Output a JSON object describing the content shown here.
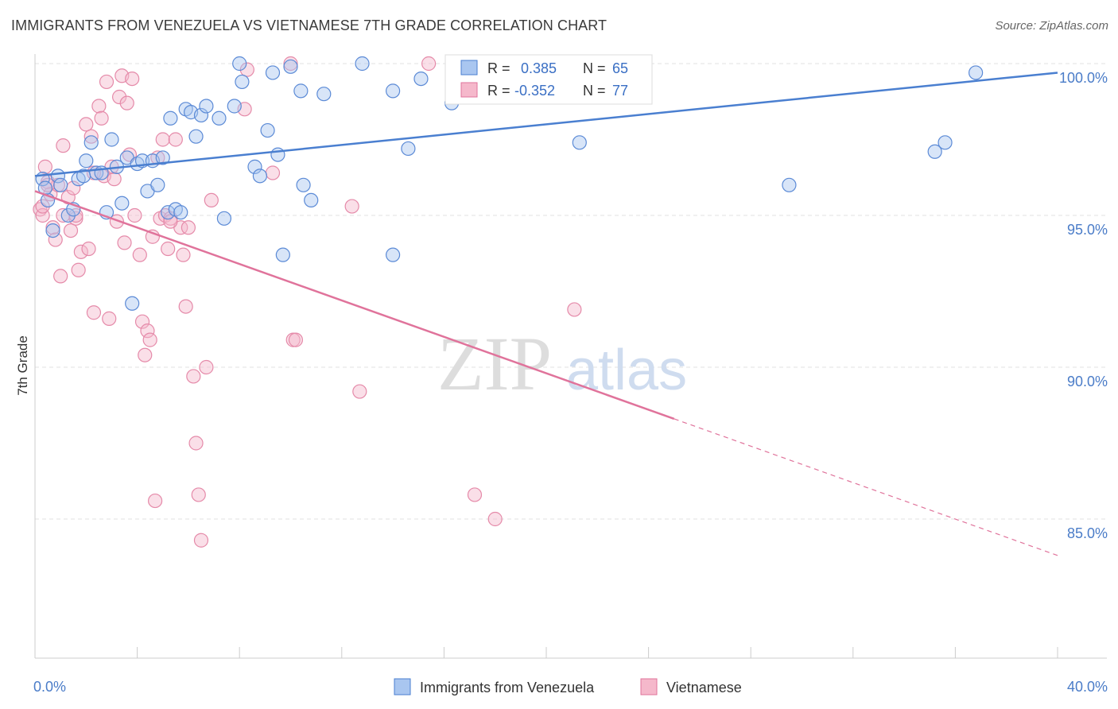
{
  "title": "IMMIGRANTS FROM VENEZUELA VS VIETNAMESE 7TH GRADE CORRELATION CHART",
  "source": "Source: ZipAtlas.com",
  "watermark": {
    "zip": "ZIP",
    "atlas": "atlas"
  },
  "chart_data": {
    "type": "scatter",
    "ylabel": "7th Grade",
    "xlim": [
      0,
      40
    ],
    "ylim": [
      80,
      100.5
    ],
    "x_tick_labels": [
      {
        "value": 0,
        "label": "0.0%"
      },
      {
        "value": 40,
        "label": "40.0%"
      }
    ],
    "y_tick_labels": [
      {
        "value": 100,
        "label": "100.0%"
      },
      {
        "value": 95,
        "label": "95.0%"
      },
      {
        "value": 90,
        "label": "90.0%"
      },
      {
        "value": 85,
        "label": "85.0%"
      }
    ],
    "grid": true,
    "legend_position": "top-center",
    "colors": {
      "blue": "#4a7fd0",
      "blue_fill": "#a9c6f0",
      "pink": "#e0739b",
      "pink_fill": "#f5b8cb"
    },
    "series": [
      {
        "name": "Immigrants from Venezuela",
        "color": "#4a7fd0",
        "legend_r_label": "R =",
        "legend_r": "0.385",
        "legend_n_label": "N =",
        "legend_n": "65",
        "trend": {
          "x": [
            0,
            40
          ],
          "y": [
            96.3,
            99.7
          ],
          "dashed_from": null
        },
        "points": [
          [
            0.3,
            96.2
          ],
          [
            0.5,
            95.5
          ],
          [
            0.7,
            94.5
          ],
          [
            0.9,
            96.3
          ],
          [
            1.0,
            96.0
          ],
          [
            1.3,
            95.0
          ],
          [
            1.5,
            95.2
          ],
          [
            1.7,
            96.2
          ],
          [
            2.0,
            96.8
          ],
          [
            2.2,
            97.4
          ],
          [
            2.4,
            96.4
          ],
          [
            2.6,
            96.4
          ],
          [
            2.8,
            95.1
          ],
          [
            3.0,
            97.5
          ],
          [
            3.2,
            96.6
          ],
          [
            3.4,
            95.4
          ],
          [
            3.6,
            96.9
          ],
          [
            3.8,
            92.1
          ],
          [
            4.0,
            96.7
          ],
          [
            4.2,
            96.8
          ],
          [
            4.4,
            95.8
          ],
          [
            4.6,
            96.8
          ],
          [
            4.8,
            96.0
          ],
          [
            5.0,
            96.9
          ],
          [
            5.2,
            95.1
          ],
          [
            5.3,
            98.2
          ],
          [
            5.5,
            95.2
          ],
          [
            5.7,
            95.1
          ],
          [
            5.9,
            98.5
          ],
          [
            6.1,
            98.4
          ],
          [
            6.3,
            97.6
          ],
          [
            6.5,
            98.3
          ],
          [
            6.7,
            98.6
          ],
          [
            7.2,
            98.2
          ],
          [
            7.4,
            94.9
          ],
          [
            7.8,
            98.6
          ],
          [
            8.0,
            100.0
          ],
          [
            8.1,
            99.4
          ],
          [
            8.6,
            96.6
          ],
          [
            8.8,
            96.3
          ],
          [
            9.1,
            97.8
          ],
          [
            9.3,
            99.7
          ],
          [
            9.5,
            97.0
          ],
          [
            9.7,
            93.7
          ],
          [
            10.0,
            99.9
          ],
          [
            10.4,
            99.1
          ],
          [
            10.5,
            96.0
          ],
          [
            10.8,
            95.5
          ],
          [
            11.3,
            99.0
          ],
          [
            12.8,
            100.0
          ],
          [
            14.0,
            99.1
          ],
          [
            14.6,
            97.2
          ],
          [
            15.1,
            99.5
          ],
          [
            16.3,
            98.7
          ],
          [
            16.9,
            99.5
          ],
          [
            17.5,
            100.0
          ],
          [
            14.0,
            93.7
          ],
          [
            21.3,
            97.4
          ],
          [
            22.4,
            100.0
          ],
          [
            29.5,
            96.0
          ],
          [
            35.2,
            97.1
          ],
          [
            35.6,
            97.4
          ],
          [
            36.8,
            99.7
          ],
          [
            0.4,
            95.9
          ],
          [
            1.9,
            96.3
          ]
        ]
      },
      {
        "name": "Vietnamese",
        "color": "#e0739b",
        "legend_r_label": "R =",
        "legend_r": "-0.352",
        "legend_n_label": "N =",
        "legend_n": "77",
        "trend": {
          "x": [
            0,
            25,
            40
          ],
          "y": [
            95.8,
            88.3,
            83.8
          ],
          "dashed_from": 25
        },
        "points": [
          [
            0.2,
            95.2
          ],
          [
            0.3,
            95.0
          ],
          [
            0.4,
            96.6
          ],
          [
            0.5,
            96.1
          ],
          [
            0.6,
            95.7
          ],
          [
            0.7,
            94.6
          ],
          [
            0.8,
            94.2
          ],
          [
            0.9,
            96.0
          ],
          [
            1.0,
            93.0
          ],
          [
            1.1,
            97.3
          ],
          [
            1.3,
            95.6
          ],
          [
            1.4,
            94.5
          ],
          [
            1.5,
            95.9
          ],
          [
            1.6,
            94.9
          ],
          [
            1.7,
            93.2
          ],
          [
            1.8,
            93.8
          ],
          [
            2.0,
            98.0
          ],
          [
            2.1,
            93.9
          ],
          [
            2.2,
            97.6
          ],
          [
            2.3,
            91.8
          ],
          [
            2.5,
            98.6
          ],
          [
            2.6,
            98.2
          ],
          [
            2.7,
            96.3
          ],
          [
            2.8,
            99.4
          ],
          [
            2.9,
            91.6
          ],
          [
            3.1,
            96.2
          ],
          [
            3.2,
            94.8
          ],
          [
            3.3,
            98.9
          ],
          [
            3.4,
            99.6
          ],
          [
            3.5,
            94.1
          ],
          [
            3.6,
            98.7
          ],
          [
            3.7,
            97.0
          ],
          [
            3.8,
            99.5
          ],
          [
            3.9,
            95.0
          ],
          [
            4.1,
            93.7
          ],
          [
            4.2,
            91.5
          ],
          [
            4.3,
            90.4
          ],
          [
            4.4,
            91.2
          ],
          [
            4.5,
            90.9
          ],
          [
            4.6,
            94.3
          ],
          [
            4.8,
            96.9
          ],
          [
            4.9,
            94.9
          ],
          [
            5.0,
            97.5
          ],
          [
            5.1,
            95.0
          ],
          [
            5.2,
            93.9
          ],
          [
            5.3,
            94.9
          ],
          [
            5.5,
            97.5
          ],
          [
            5.7,
            94.6
          ],
          [
            5.8,
            93.7
          ],
          [
            5.9,
            92.0
          ],
          [
            6.0,
            94.6
          ],
          [
            6.2,
            89.7
          ],
          [
            6.3,
            87.5
          ],
          [
            6.4,
            85.8
          ],
          [
            6.5,
            84.3
          ],
          [
            6.7,
            90.0
          ],
          [
            6.9,
            95.5
          ],
          [
            8.3,
            99.8
          ],
          [
            8.2,
            98.5
          ],
          [
            9.3,
            96.4
          ],
          [
            10.0,
            100.0
          ],
          [
            10.1,
            90.9
          ],
          [
            10.2,
            90.9
          ],
          [
            12.4,
            95.3
          ],
          [
            12.7,
            89.2
          ],
          [
            15.4,
            100.0
          ],
          [
            17.2,
            85.8
          ],
          [
            18.0,
            85.0
          ],
          [
            21.1,
            91.9
          ],
          [
            4.7,
            85.6
          ],
          [
            0.3,
            95.3
          ],
          [
            2.3,
            96.4
          ],
          [
            1.1,
            95.0
          ],
          [
            0.5,
            96.0
          ],
          [
            3.0,
            96.6
          ],
          [
            5.3,
            94.8
          ],
          [
            1.6,
            95.0
          ]
        ]
      }
    ]
  }
}
